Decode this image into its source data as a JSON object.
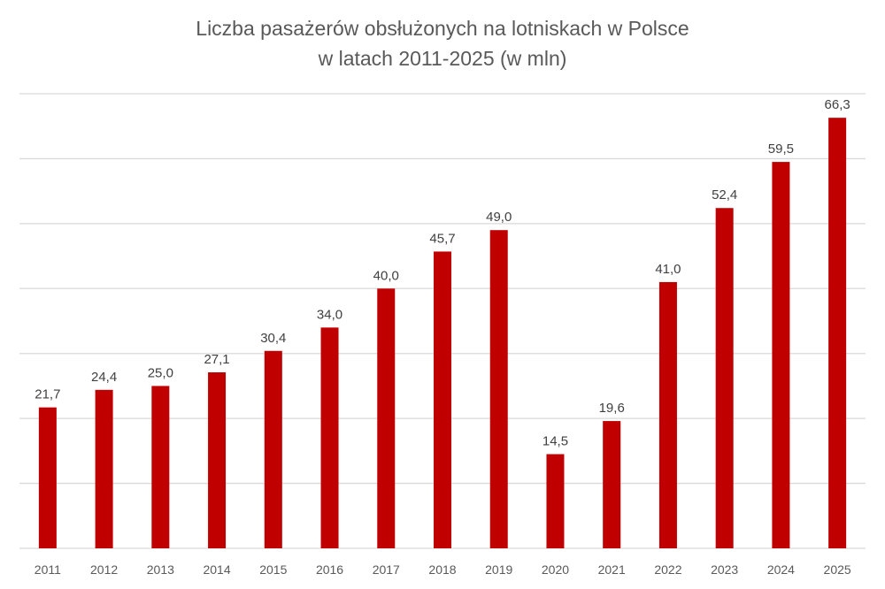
{
  "chart_data": {
    "type": "bar",
    "title": [
      "Liczba pasażerów obsłużonych  na lotniskach w Polsce",
      "w latach 2011-2025 (w mln)"
    ],
    "xlabel": "",
    "ylabel": "",
    "ylim": [
      0,
      70
    ],
    "grid": true,
    "legend": "none",
    "categories": [
      "2011",
      "2012",
      "2013",
      "2014",
      "2015",
      "2016",
      "2017",
      "2018",
      "2019",
      "2020",
      "2021",
      "2022",
      "2023",
      "2024",
      "2025"
    ],
    "values": [
      21.7,
      24.4,
      25.0,
      27.1,
      30.4,
      34.0,
      40.0,
      45.7,
      49.0,
      14.5,
      19.6,
      41.0,
      52.4,
      59.5,
      66.3
    ],
    "data_labels": [
      "21,7",
      "24,4",
      "25,0",
      "27,1",
      "30,4",
      "34,0",
      "40,0",
      "45,7",
      "49,0",
      "14,5",
      "19,6",
      "41,0",
      "52,4",
      "59,5",
      "66,3"
    ],
    "bar_color": "#C00000",
    "grid_color": "#D9D9D9"
  }
}
